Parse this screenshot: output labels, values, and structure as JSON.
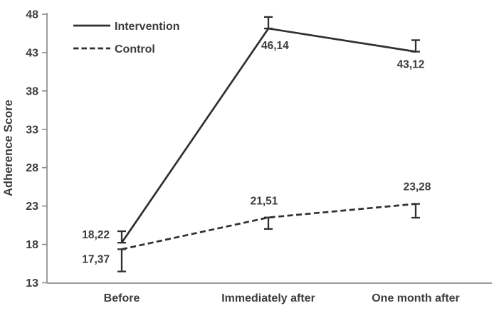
{
  "chart_data": {
    "type": "line",
    "title": "",
    "xlabel": "",
    "ylabel": "Adherence Score",
    "categories": [
      "Before",
      "Immediately after",
      "One month after"
    ],
    "yticks": [
      13,
      18,
      23,
      28,
      33,
      38,
      43,
      48
    ],
    "ylim": [
      13,
      48
    ],
    "grid": false,
    "legend_position": "top-left-inside",
    "series": [
      {
        "name": "Intervention",
        "line_style": "solid",
        "values": [
          18.22,
          46.14,
          43.12
        ],
        "point_labels": [
          "18,22",
          "46,14",
          "43,12"
        ],
        "error_bars": {
          "direction": "up",
          "sizes": [
            1.5,
            1.5,
            1.5
          ]
        }
      },
      {
        "name": "Control",
        "line_style": "dashed",
        "values": [
          17.37,
          21.51,
          23.28
        ],
        "point_labels": [
          "17,37",
          "21,51",
          "23,28"
        ],
        "error_bars": {
          "direction": "down",
          "sizes": [
            2.9,
            1.5,
            1.8
          ]
        }
      }
    ],
    "colors": {
      "line": "#303030",
      "axis": "#8c8c8c",
      "text": "#3d3d3d",
      "background": "#ffffff"
    }
  }
}
